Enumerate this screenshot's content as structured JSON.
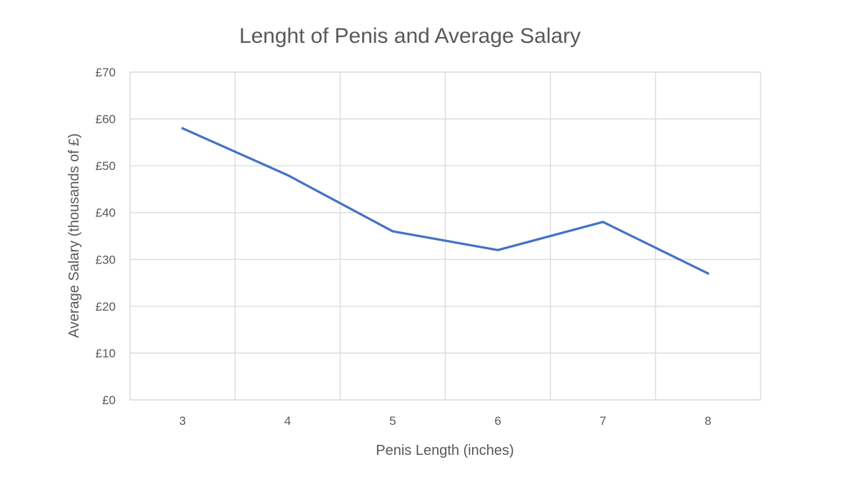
{
  "chart_data": {
    "type": "line",
    "title": "Lenght of Penis and Average Salary",
    "xlabel": "Penis Length (inches)",
    "ylabel": "Average Salary (thousands of £)",
    "categories": [
      "3",
      "4",
      "5",
      "6",
      "7",
      "8"
    ],
    "series": [
      {
        "values": [
          58,
          48,
          36,
          32,
          38,
          27
        ],
        "color": "#4472c4"
      }
    ],
    "ylim": [
      0,
      70
    ],
    "yticks": [
      0,
      10,
      20,
      30,
      40,
      50,
      60,
      70
    ],
    "ytick_labels": [
      "£0",
      "£10",
      "£20",
      "£30",
      "£40",
      "£50",
      "£60",
      "£70"
    ],
    "grid": true,
    "legend": "none"
  }
}
